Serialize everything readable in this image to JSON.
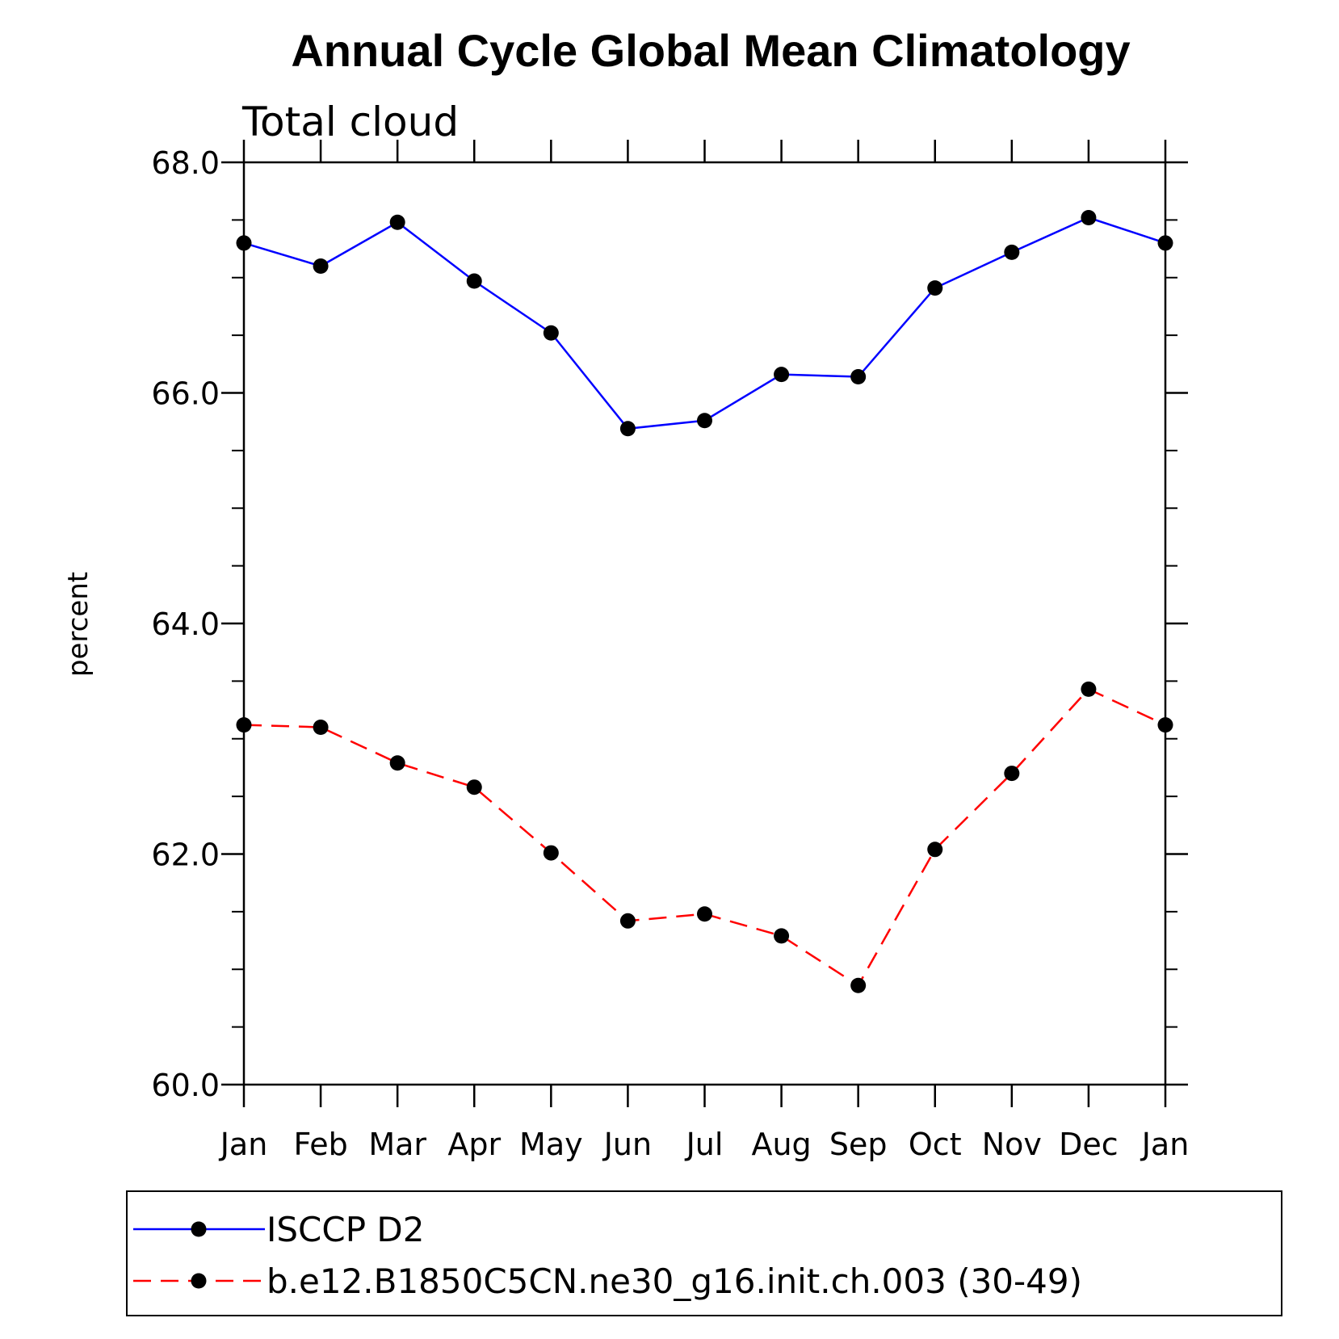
{
  "chart_data": {
    "type": "line",
    "title": "Annual Cycle Global Mean Climatology",
    "subtitle": "Total cloud",
    "xlabel": "",
    "ylabel": "percent",
    "categories": [
      "Jan",
      "Feb",
      "Mar",
      "Apr",
      "May",
      "Jun",
      "Jul",
      "Aug",
      "Sep",
      "Oct",
      "Nov",
      "Dec",
      "Jan"
    ],
    "ylim": [
      60.0,
      68.0
    ],
    "yticks": [
      "60.0",
      "62.0",
      "64.0",
      "66.0",
      "68.0"
    ],
    "grid": false,
    "legend_position": "bottom",
    "series": [
      {
        "name": "ISCCP D2",
        "color": "#0000ff",
        "line_style": "solid",
        "marker": "filled-circle",
        "values": [
          67.3,
          67.1,
          67.48,
          66.97,
          66.52,
          65.69,
          65.76,
          66.16,
          66.14,
          66.91,
          67.22,
          67.52,
          67.3
        ]
      },
      {
        "name": "b.e12.B1850C5CN.ne30_g16.init.ch.003 (30-49)",
        "color": "#ff0000",
        "line_style": "dashed",
        "marker": "filled-circle",
        "values": [
          63.12,
          63.1,
          62.79,
          62.58,
          62.01,
          61.42,
          61.48,
          61.29,
          60.86,
          62.04,
          62.7,
          63.43,
          63.12
        ]
      }
    ]
  }
}
